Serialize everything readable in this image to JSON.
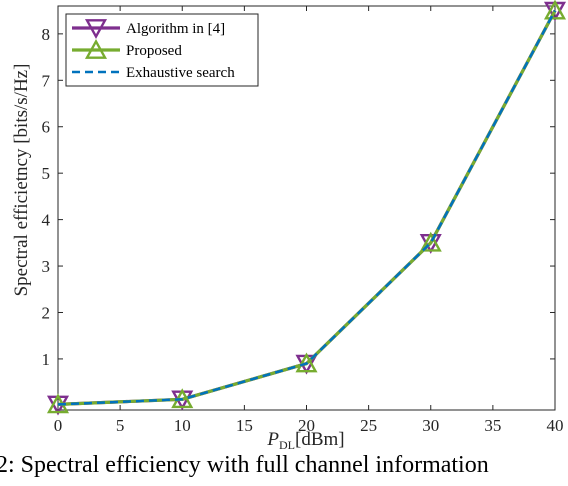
{
  "colors": {
    "algorithm": "#7E2F8E",
    "proposed": "#77AC30",
    "exhaustive": "#0072BD",
    "axis": "#262626"
  },
  "chart_data": {
    "type": "line",
    "x": [
      0,
      10,
      20,
      30,
      40
    ],
    "series": [
      {
        "name": "Algorithm in [4]",
        "marker": "triangle-down",
        "color": "#7E2F8E",
        "values": [
          0.02,
          0.13,
          0.9,
          3.5,
          8.5
        ]
      },
      {
        "name": "Proposed",
        "marker": "triangle-up",
        "color": "#77AC30",
        "values": [
          0.02,
          0.13,
          0.9,
          3.5,
          8.5
        ]
      },
      {
        "name": "Exhaustive search",
        "marker": "none",
        "dashed": true,
        "color": "#0072BD",
        "values": [
          0.02,
          0.13,
          0.9,
          3.5,
          8.5
        ]
      }
    ],
    "xlabel_main": "P",
    "xlabel_sub": "DL",
    "xlabel_unit": "[dBm]",
    "ylabel": "Spectral efficietncy [bits/s/Hz]",
    "xlim": [
      0,
      40
    ],
    "ylim": [
      -0.1,
      8.6
    ],
    "xticks": [
      "0",
      "5",
      "10",
      "15",
      "20",
      "25",
      "30",
      "35",
      "40"
    ],
    "yticks": [
      "1",
      "2",
      "3",
      "4",
      "5",
      "6",
      "7",
      "8"
    ],
    "legend_position": "top-left",
    "grid": false
  },
  "caption": "2: Spectral efficiency with full channel information"
}
